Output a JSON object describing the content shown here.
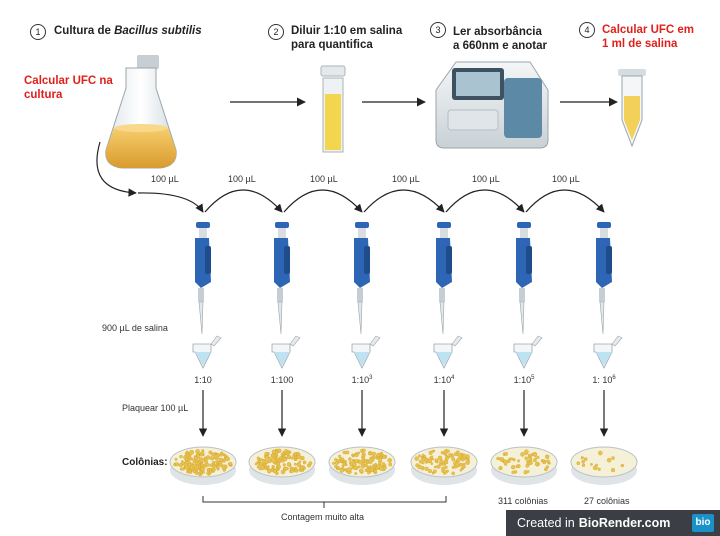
{
  "steps": [
    {
      "num": "1",
      "text_plain": "Cultura de ",
      "text_italic": "Bacillus subtilis"
    },
    {
      "num": "2",
      "line1": "Diluir 1:10 em salina",
      "line2": "para quantifica"
    },
    {
      "num": "3",
      "line1": "Ler absorbância",
      "line2": "a 660nm e anotar"
    },
    {
      "num": "4",
      "line1": "Calcular UFC em",
      "line2": "1 ml de salina"
    }
  ],
  "culture_note": {
    "line1": "Calcular UFC na",
    "line2": "cultura"
  },
  "transfer_label": "100 µL",
  "saline_label": "900 µL de salina",
  "dilutions": [
    {
      "base": "1:10",
      "exp": ""
    },
    {
      "base": "1:100",
      "exp": ""
    },
    {
      "base": "1:10",
      "exp": "3"
    },
    {
      "base": "1:10",
      "exp": "4"
    },
    {
      "base": "1:10",
      "exp": "5"
    },
    {
      "base": "1: 10",
      "exp": "6"
    }
  ],
  "plate_label": "Plaquear 100 µL",
  "colonies_label": "Colônias:",
  "plate_counts": [
    "",
    "",
    "",
    "",
    "311 colônias",
    "27 colônias"
  ],
  "plate_density": [
    1.0,
    0.9,
    0.85,
    0.6,
    0.35,
    0.1
  ],
  "too_high_label": "Contagem muito alta",
  "badge": {
    "prefix": "Created in",
    "brand": "BioRender.com",
    "logo": "bio"
  },
  "colors": {
    "pipette": "#2c66b5",
    "red_text": "#e0201b",
    "culture": "#e8b24a",
    "colony": "#e9c24b",
    "badge_bg": "#3b3e44",
    "badge_logo": "#1a91c9"
  }
}
